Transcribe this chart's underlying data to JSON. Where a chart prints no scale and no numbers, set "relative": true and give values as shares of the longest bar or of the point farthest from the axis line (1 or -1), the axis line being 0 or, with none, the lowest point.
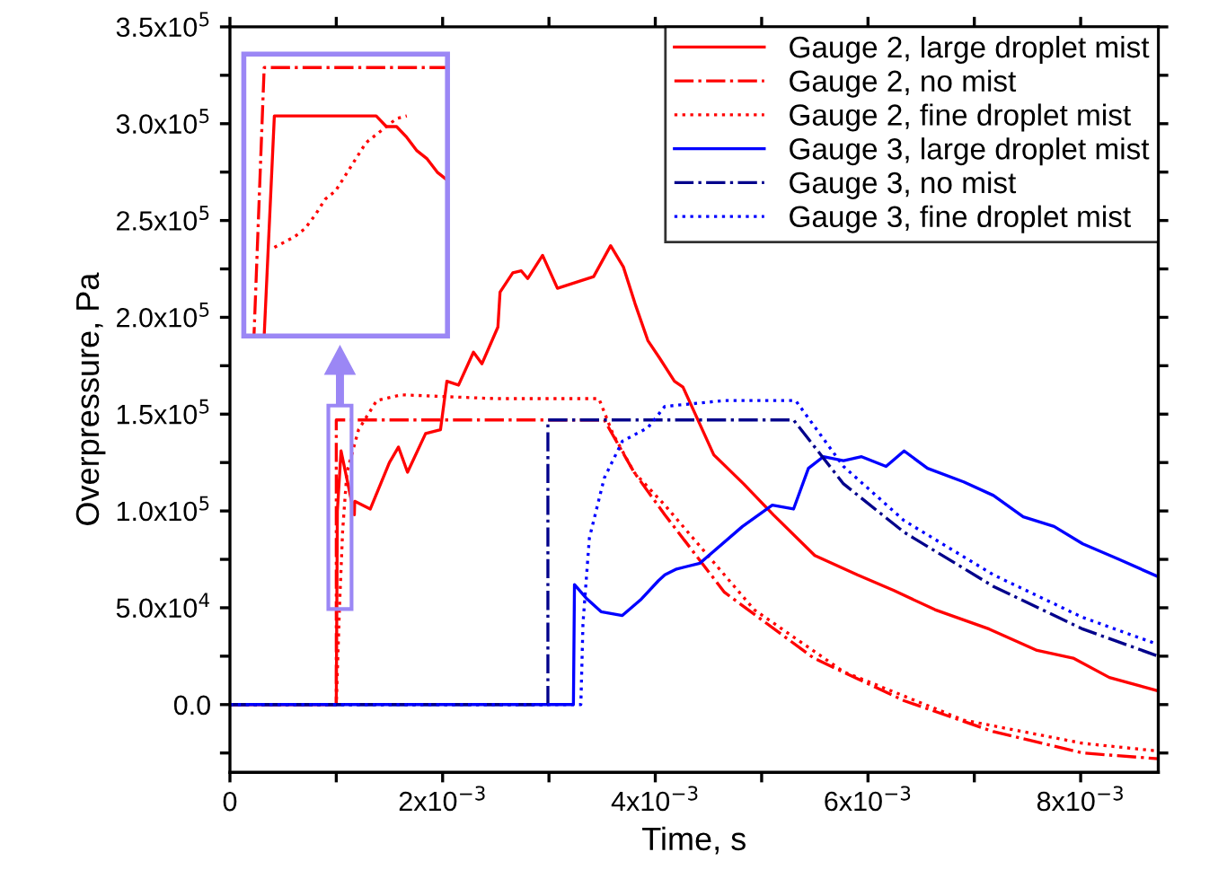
{
  "chart_data": [
    {
      "type": "line",
      "xlabel": "Time, s",
      "ylabel": "Overpressure, Pa",
      "xlim": [
        0,
        0.00873
      ],
      "ylim": [
        -35000,
        350000
      ],
      "xticks": [
        {
          "value": 0,
          "label": "0"
        },
        {
          "value": 0.001,
          "label": null
        },
        {
          "value": 0.002,
          "label": "2x10$^{−3}$"
        },
        {
          "value": 0.003,
          "label": null
        },
        {
          "value": 0.004,
          "label": "4x10$^{−3}$"
        },
        {
          "value": 0.005,
          "label": null
        },
        {
          "value": 0.006,
          "label": "6x10$^{−3}$"
        },
        {
          "value": 0.007,
          "label": null
        },
        {
          "value": 0.008,
          "label": "8x10$^{−3}$"
        }
      ],
      "yticks": [
        {
          "value": -25000,
          "label": null
        },
        {
          "value": 0,
          "label": "0.0"
        },
        {
          "value": 25000,
          "label": null
        },
        {
          "value": 50000,
          "label": "5.0x10$^{4}$"
        },
        {
          "value": 75000,
          "label": null
        },
        {
          "value": 100000,
          "label": "1.0x10$^{5}$"
        },
        {
          "value": 125000,
          "label": null
        },
        {
          "value": 150000,
          "label": "1.5x10$^{5}$"
        },
        {
          "value": 175000,
          "label": null
        },
        {
          "value": 200000,
          "label": "2.0x10$^{5}$"
        },
        {
          "value": 225000,
          "label": null
        },
        {
          "value": 250000,
          "label": "2.5x10$^{5}$"
        },
        {
          "value": 275000,
          "label": null
        },
        {
          "value": 300000,
          "label": "3.0x10$^{5}$"
        },
        {
          "value": 325000,
          "label": null
        },
        {
          "value": 350000,
          "label": "3.5x10$^{5}$"
        }
      ],
      "grid": false,
      "legend": "top right",
      "marker": "none",
      "series": [
        {
          "name": "Gauge 2, large droplet mist",
          "color": "#ff0000",
          "line_style": "solid",
          "x": [
            0,
            0.001,
            0.00101,
            0.001045,
            0.00117,
            0.001173,
            0.00132,
            0.0015,
            0.001585,
            0.00167,
            0.00184,
            0.00198,
            0.00204,
            0.00215,
            0.00229,
            0.00237,
            0.00252,
            0.00254,
            0.00266,
            0.00274,
            0.0028,
            0.00294,
            0.00308,
            0.00325,
            0.00342,
            0.00358,
            0.0037,
            0.00381,
            0.00393,
            0.00404,
            0.00418,
            0.00426,
            0.00455,
            0.00483,
            0.00511,
            0.0055,
            0.0059,
            0.00624,
            0.00663,
            0.00714,
            0.00759,
            0.00793,
            0.00827,
            0.00873
          ],
          "values": [
            0,
            0,
            100000,
            131000,
            98000,
            105000,
            101000,
            125000,
            133000,
            120000,
            140000,
            142000,
            167000,
            165000,
            182000,
            176000,
            195000,
            213000,
            223000,
            224000,
            220000,
            232000,
            215000,
            218000,
            221000,
            237000,
            226000,
            207000,
            188000,
            179000,
            167000,
            164000,
            129000,
            114000,
            98000,
            77000,
            67000,
            59000,
            49000,
            39000,
            28000,
            24000,
            14000,
            7000
          ]
        },
        {
          "name": "Gauge 2, no mist",
          "color": "#ff0000",
          "line_style": "dashdot",
          "x": [
            0,
            0.001,
            0.001,
            0.00352,
            0.0038,
            0.00409,
            0.00465,
            0.00549,
            0.00634,
            0.00718,
            0.00802,
            0.00873
          ],
          "values": [
            0,
            0,
            147000,
            147000,
            120000,
            98000,
            58000,
            24000,
            2000,
            -14000,
            -25000,
            -28000
          ]
        },
        {
          "name": "Gauge 2, fine droplet mist",
          "color": "#ff0000",
          "line_style": "dotted",
          "x": [
            0,
            0.001,
            0.00103,
            0.00106,
            0.0011,
            0.00121,
            0.00138,
            0.00161,
            0.0025,
            0.00347,
            0.0036,
            0.0038,
            0.00409,
            0.00493,
            0.00577,
            0.0069,
            0.00802,
            0.00873
          ],
          "values": [
            0,
            0,
            50000,
            90000,
            120000,
            142000,
            157000,
            160000,
            158000,
            158000,
            140000,
            120000,
            103000,
            49000,
            17000,
            -8000,
            -20000,
            -24000
          ]
        },
        {
          "name": "Gauge 3, large droplet mist",
          "color": "#0000ff",
          "line_style": "solid",
          "x": [
            0,
            0.00323,
            0.00324,
            0.00335,
            0.00349,
            0.00369,
            0.00386,
            0.00403,
            0.00409,
            0.0042,
            0.00442,
            0.00482,
            0.0051,
            0.0053,
            0.00544,
            0.00558,
            0.00577,
            0.00594,
            0.00617,
            0.00634,
            0.00656,
            0.0069,
            0.00718,
            0.00746,
            0.00775,
            0.00802,
            0.00836,
            0.00873
          ],
          "values": [
            0,
            0,
            62000,
            55000,
            48000,
            46000,
            54000,
            64000,
            67000,
            70000,
            73000,
            92000,
            103000,
            101000,
            122000,
            128000,
            126000,
            128000,
            123000,
            131000,
            122000,
            115000,
            108000,
            97000,
            92000,
            83000,
            75000,
            66000
          ]
        },
        {
          "name": "Gauge 3, no mist",
          "color": "#00008b",
          "line_style": "dashdot",
          "x": [
            0,
            0.00299,
            0.00299,
            0.0053,
            0.00577,
            0.00634,
            0.00718,
            0.00802,
            0.00873
          ],
          "values": [
            0,
            0,
            147000,
            147000,
            114000,
            89000,
            61000,
            39000,
            25000
          ]
        },
        {
          "name": "Gauge 3, fine droplet mist",
          "color": "#0000ff",
          "line_style": "dotted",
          "x": [
            0,
            0.0033,
            0.00332,
            0.00338,
            0.00352,
            0.00369,
            0.00393,
            0.00409,
            0.00465,
            0.00532,
            0.00577,
            0.00634,
            0.00718,
            0.00802,
            0.00873
          ],
          "values": [
            0,
            0,
            42000,
            86000,
            117000,
            136000,
            143000,
            154000,
            157000,
            157000,
            123000,
            95000,
            67000,
            45000,
            31000
          ]
        }
      ]
    },
    {
      "type": "line",
      "relative": true,
      "tick_labels": false,
      "grid": false,
      "marker": "none",
      "categories": [
        null,
        null,
        null,
        null,
        null,
        null,
        null,
        null,
        null,
        null,
        null,
        null,
        null,
        null,
        null,
        null,
        null,
        null,
        null,
        null,
        null
      ],
      "series": [
        {
          "color": "#ff0000",
          "line_style": "solid",
          "values": [
            0,
            0,
            0,
            0.82,
            0.82,
            0.82,
            0.82,
            0.82,
            0.82,
            0.82,
            0.82,
            0.82,
            0.82,
            0.82,
            0.78,
            0.78,
            0.74,
            0.69,
            0.66,
            0.61,
            0.58
          ]
        },
        {
          "color": "#ff0000",
          "line_style": "dashdot",
          "values": [
            0,
            0,
            1,
            1,
            1,
            1,
            1,
            1,
            1,
            1,
            1,
            1,
            1,
            1,
            1,
            1,
            1,
            1,
            1,
            1,
            1
          ]
        },
        {
          "color": "#ff0000",
          "line_style": "dotted",
          "values": [
            null,
            null,
            null,
            0.33,
            0.35,
            0.37,
            0.4,
            0.45,
            0.51,
            0.54,
            0.6,
            0.66,
            0.72,
            0.75,
            0.78,
            0.81,
            0.82,
            null,
            null,
            null,
            null
          ]
        }
      ]
    }
  ]
}
